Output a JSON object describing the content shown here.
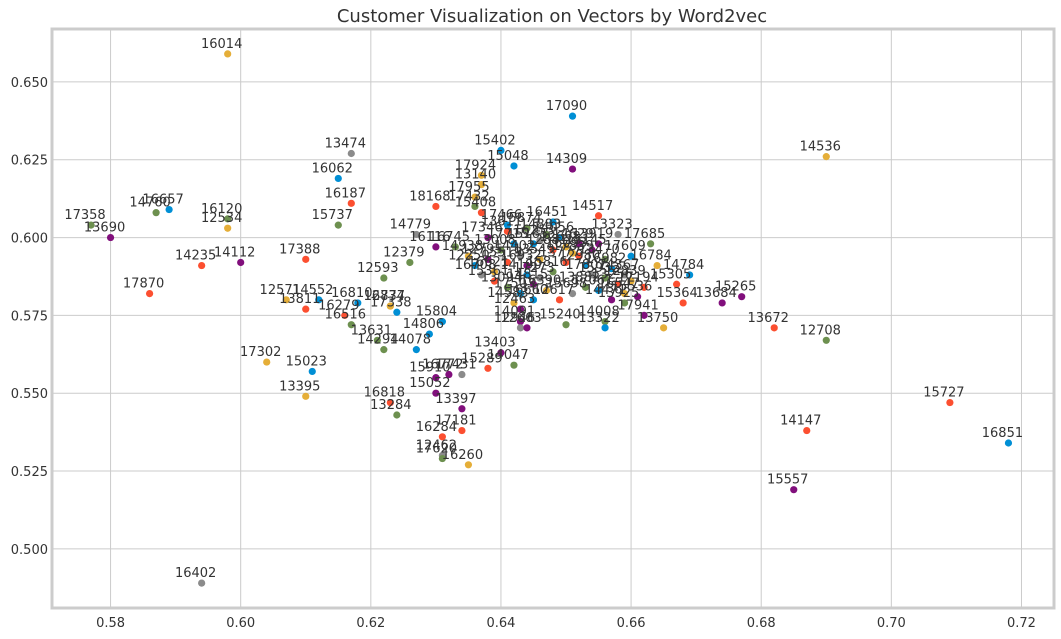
{
  "chart_data": {
    "type": "scatter",
    "title": "Customer Visualization on Vectors by Word2vec",
    "xlabel": "",
    "ylabel": "",
    "xlim": [
      0.571,
      0.725
    ],
    "ylim": [
      0.481,
      0.667
    ],
    "xticks": [
      0.58,
      0.6,
      0.62,
      0.64,
      0.66,
      0.68,
      0.7,
      0.72
    ],
    "yticks": [
      0.5,
      0.525,
      0.55,
      0.575,
      0.6,
      0.625,
      0.65
    ],
    "grid": true,
    "palette": [
      "#008fd5",
      "#fc4f30",
      "#e5ae38",
      "#6d904f",
      "#8b8b8b",
      "#810f7c"
    ],
    "points": [
      {
        "label": "16014",
        "x": 0.598,
        "y": 0.659,
        "c": 2
      },
      {
        "label": "17090",
        "x": 0.651,
        "y": 0.639,
        "c": 0
      },
      {
        "label": "14536",
        "x": 0.69,
        "y": 0.626,
        "c": 2
      },
      {
        "label": "13474",
        "x": 0.617,
        "y": 0.627,
        "c": 4
      },
      {
        "label": "15402",
        "x": 0.64,
        "y": 0.628,
        "c": 0
      },
      {
        "label": "15048",
        "x": 0.642,
        "y": 0.623,
        "c": 0
      },
      {
        "label": "14309",
        "x": 0.651,
        "y": 0.622,
        "c": 5
      },
      {
        "label": "16062",
        "x": 0.615,
        "y": 0.619,
        "c": 0
      },
      {
        "label": "17924",
        "x": 0.637,
        "y": 0.62,
        "c": 2
      },
      {
        "label": "13140",
        "x": 0.637,
        "y": 0.617,
        "c": 2
      },
      {
        "label": "16187",
        "x": 0.617,
        "y": 0.611,
        "c": 1
      },
      {
        "label": "18168",
        "x": 0.63,
        "y": 0.61,
        "c": 1
      },
      {
        "label": "17955",
        "x": 0.636,
        "y": 0.613,
        "c": 2
      },
      {
        "label": "17432",
        "x": 0.636,
        "y": 0.61,
        "c": 3
      },
      {
        "label": "15408",
        "x": 0.637,
        "y": 0.608,
        "c": 1
      },
      {
        "label": "14517",
        "x": 0.655,
        "y": 0.607,
        "c": 1
      },
      {
        "label": "16657",
        "x": 0.589,
        "y": 0.609,
        "c": 0
      },
      {
        "label": "14760",
        "x": 0.587,
        "y": 0.608,
        "c": 3
      },
      {
        "label": "16120",
        "x": 0.598,
        "y": 0.606,
        "c": 3
      },
      {
        "label": "12534",
        "x": 0.598,
        "y": 0.603,
        "c": 2
      },
      {
        "label": "15737",
        "x": 0.615,
        "y": 0.604,
        "c": 3
      },
      {
        "label": "17358",
        "x": 0.577,
        "y": 0.604,
        "c": 3
      },
      {
        "label": "13690",
        "x": 0.58,
        "y": 0.6,
        "c": 5
      },
      {
        "label": "14779",
        "x": 0.627,
        "y": 0.601,
        "c": 4
      },
      {
        "label": "16116",
        "x": 0.63,
        "y": 0.597,
        "c": 5
      },
      {
        "label": "16745",
        "x": 0.633,
        "y": 0.597,
        "c": 3
      },
      {
        "label": "17466",
        "x": 0.641,
        "y": 0.604,
        "c": 0
      },
      {
        "label": "16451",
        "x": 0.648,
        "y": 0.605,
        "c": 0
      },
      {
        "label": "13323",
        "x": 0.658,
        "y": 0.601,
        "c": 4
      },
      {
        "label": "17685",
        "x": 0.663,
        "y": 0.598,
        "c": 3
      },
      {
        "label": "13919",
        "x": 0.655,
        "y": 0.598,
        "c": 5
      },
      {
        "label": "17388",
        "x": 0.61,
        "y": 0.593,
        "c": 1
      },
      {
        "label": "12379",
        "x": 0.626,
        "y": 0.592,
        "c": 3
      },
      {
        "label": "14112",
        "x": 0.6,
        "y": 0.592,
        "c": 5
      },
      {
        "label": "14235",
        "x": 0.594,
        "y": 0.591,
        "c": 1
      },
      {
        "label": "12593",
        "x": 0.622,
        "y": 0.587,
        "c": 3
      },
      {
        "label": "17609",
        "x": 0.66,
        "y": 0.594,
        "c": 0
      },
      {
        "label": "16784",
        "x": 0.664,
        "y": 0.591,
        "c": 2
      },
      {
        "label": "14784",
        "x": 0.669,
        "y": 0.588,
        "c": 0
      },
      {
        "label": "15305",
        "x": 0.667,
        "y": 0.585,
        "c": 1
      },
      {
        "label": "15265",
        "x": 0.677,
        "y": 0.581,
        "c": 5
      },
      {
        "label": "13684",
        "x": 0.674,
        "y": 0.579,
        "c": 5
      },
      {
        "label": "15364",
        "x": 0.668,
        "y": 0.579,
        "c": 1
      },
      {
        "label": "17870",
        "x": 0.586,
        "y": 0.582,
        "c": 1
      },
      {
        "label": "12571",
        "x": 0.607,
        "y": 0.58,
        "c": 2
      },
      {
        "label": "14552",
        "x": 0.612,
        "y": 0.58,
        "c": 0
      },
      {
        "label": "16810",
        "x": 0.618,
        "y": 0.579,
        "c": 0
      },
      {
        "label": "13811",
        "x": 0.61,
        "y": 0.577,
        "c": 1
      },
      {
        "label": "16279",
        "x": 0.616,
        "y": 0.575,
        "c": 1
      },
      {
        "label": "16777",
        "x": 0.623,
        "y": 0.578,
        "c": 2
      },
      {
        "label": "12834",
        "x": 0.623,
        "y": 0.578,
        "c": 2
      },
      {
        "label": "17338",
        "x": 0.624,
        "y": 0.576,
        "c": 0
      },
      {
        "label": "16516",
        "x": 0.617,
        "y": 0.572,
        "c": 3
      },
      {
        "label": "15804",
        "x": 0.631,
        "y": 0.573,
        "c": 0
      },
      {
        "label": "14806",
        "x": 0.629,
        "y": 0.569,
        "c": 0
      },
      {
        "label": "13631",
        "x": 0.621,
        "y": 0.567,
        "c": 3
      },
      {
        "label": "14294",
        "x": 0.622,
        "y": 0.564,
        "c": 3
      },
      {
        "label": "14078",
        "x": 0.627,
        "y": 0.564,
        "c": 0
      },
      {
        "label": "12463",
        "x": 0.643,
        "y": 0.577,
        "c": 5
      },
      {
        "label": "14091",
        "x": 0.643,
        "y": 0.573,
        "c": 5
      },
      {
        "label": "12946",
        "x": 0.643,
        "y": 0.571,
        "c": 4
      },
      {
        "label": "12663",
        "x": 0.644,
        "y": 0.571,
        "c": 5
      },
      {
        "label": "15240",
        "x": 0.65,
        "y": 0.572,
        "c": 3
      },
      {
        "label": "14008",
        "x": 0.656,
        "y": 0.573,
        "c": 3
      },
      {
        "label": "13322",
        "x": 0.656,
        "y": 0.571,
        "c": 0
      },
      {
        "label": "13750",
        "x": 0.665,
        "y": 0.571,
        "c": 2
      },
      {
        "label": "17941",
        "x": 0.662,
        "y": 0.575,
        "c": 5
      },
      {
        "label": "13672",
        "x": 0.682,
        "y": 0.571,
        "c": 1
      },
      {
        "label": "12708",
        "x": 0.69,
        "y": 0.567,
        "c": 3
      },
      {
        "label": "17302",
        "x": 0.604,
        "y": 0.56,
        "c": 2
      },
      {
        "label": "15023",
        "x": 0.611,
        "y": 0.557,
        "c": 0
      },
      {
        "label": "13403",
        "x": 0.64,
        "y": 0.563,
        "c": 5
      },
      {
        "label": "14047",
        "x": 0.642,
        "y": 0.559,
        "c": 3
      },
      {
        "label": "15289",
        "x": 0.638,
        "y": 0.558,
        "c": 1
      },
      {
        "label": "16772",
        "x": 0.632,
        "y": 0.556,
        "c": 5
      },
      {
        "label": "17431",
        "x": 0.634,
        "y": 0.556,
        "c": 4
      },
      {
        "label": "15910",
        "x": 0.63,
        "y": 0.555,
        "c": 5
      },
      {
        "label": "15052",
        "x": 0.63,
        "y": 0.55,
        "c": 5
      },
      {
        "label": "13395",
        "x": 0.61,
        "y": 0.549,
        "c": 2
      },
      {
        "label": "16818",
        "x": 0.623,
        "y": 0.547,
        "c": 1
      },
      {
        "label": "13284",
        "x": 0.624,
        "y": 0.543,
        "c": 3
      },
      {
        "label": "13397",
        "x": 0.634,
        "y": 0.545,
        "c": 5
      },
      {
        "label": "17181",
        "x": 0.634,
        "y": 0.538,
        "c": 1
      },
      {
        "label": "16284",
        "x": 0.631,
        "y": 0.536,
        "c": 1
      },
      {
        "label": "12462",
        "x": 0.631,
        "y": 0.53,
        "c": 4
      },
      {
        "label": "17620",
        "x": 0.631,
        "y": 0.529,
        "c": 3
      },
      {
        "label": "16260",
        "x": 0.635,
        "y": 0.527,
        "c": 2
      },
      {
        "label": "15727",
        "x": 0.709,
        "y": 0.547,
        "c": 1
      },
      {
        "label": "14147",
        "x": 0.687,
        "y": 0.538,
        "c": 1
      },
      {
        "label": "16851",
        "x": 0.718,
        "y": 0.534,
        "c": 0
      },
      {
        "label": "15557",
        "x": 0.685,
        "y": 0.519,
        "c": 5
      },
      {
        "label": "16402",
        "x": 0.594,
        "y": 0.489,
        "c": 4
      },
      {
        "label": "15165",
        "x": 0.645,
        "y": 0.598,
        "c": 0
      },
      {
        "label": "14883",
        "x": 0.647,
        "y": 0.601,
        "c": 3
      },
      {
        "label": "12881",
        "x": 0.648,
        "y": 0.596,
        "c": 1
      },
      {
        "label": "13549",
        "x": 0.646,
        "y": 0.593,
        "c": 2
      },
      {
        "label": "16932",
        "x": 0.644,
        "y": 0.591,
        "c": 5
      },
      {
        "label": "14402",
        "x": 0.643,
        "y": 0.594,
        "c": 4
      },
      {
        "label": "17715",
        "x": 0.642,
        "y": 0.598,
        "c": 0
      },
      {
        "label": "13008",
        "x": 0.64,
        "y": 0.596,
        "c": 3
      },
      {
        "label": "15519",
        "x": 0.641,
        "y": 0.592,
        "c": 1
      },
      {
        "label": "16621",
        "x": 0.639,
        "y": 0.589,
        "c": 2
      },
      {
        "label": "12795",
        "x": 0.638,
        "y": 0.593,
        "c": 5
      },
      {
        "label": "14190",
        "x": 0.644,
        "y": 0.588,
        "c": 0
      },
      {
        "label": "17273",
        "x": 0.646,
        "y": 0.587,
        "c": 4
      },
      {
        "label": "15816",
        "x": 0.648,
        "y": 0.589,
        "c": 3
      },
      {
        "label": "13777",
        "x": 0.65,
        "y": 0.592,
        "c": 1
      },
      {
        "label": "16093",
        "x": 0.651,
        "y": 0.595,
        "c": 2
      },
      {
        "label": "14629",
        "x": 0.652,
        "y": 0.598,
        "c": 5
      },
      {
        "label": "12980",
        "x": 0.653,
        "y": 0.591,
        "c": 0
      },
      {
        "label": "17807",
        "x": 0.654,
        "y": 0.588,
        "c": 4
      },
      {
        "label": "15932",
        "x": 0.656,
        "y": 0.587,
        "c": 3
      },
      {
        "label": "13256",
        "x": 0.658,
        "y": 0.585,
        "c": 1
      },
      {
        "label": "16547",
        "x": 0.659,
        "y": 0.582,
        "c": 2
      },
      {
        "label": "14471",
        "x": 0.657,
        "y": 0.58,
        "c": 5
      },
      {
        "label": "17061",
        "x": 0.655,
        "y": 0.583,
        "c": 0
      },
      {
        "label": "13882",
        "x": 0.653,
        "y": 0.584,
        "c": 3
      },
      {
        "label": "15698",
        "x": 0.651,
        "y": 0.582,
        "c": 4
      },
      {
        "label": "12617",
        "x": 0.649,
        "y": 0.58,
        "c": 1
      },
      {
        "label": "16390",
        "x": 0.647,
        "y": 0.583,
        "c": 2
      },
      {
        "label": "14815",
        "x": 0.645,
        "y": 0.585,
        "c": 5
      },
      {
        "label": "17503",
        "x": 0.643,
        "y": 0.582,
        "c": 0
      },
      {
        "label": "13094",
        "x": 0.641,
        "y": 0.584,
        "c": 3
      },
      {
        "label": "15361",
        "x": 0.639,
        "y": 0.586,
        "c": 1
      },
      {
        "label": "16708",
        "x": 0.637,
        "y": 0.588,
        "c": 4
      },
      {
        "label": "12250",
        "x": 0.636,
        "y": 0.591,
        "c": 0
      },
      {
        "label": "14938",
        "x": 0.635,
        "y": 0.594,
        "c": 2
      },
      {
        "label": "17346",
        "x": 0.638,
        "y": 0.6,
        "c": 5
      },
      {
        "label": "13611",
        "x": 0.641,
        "y": 0.602,
        "c": 1
      },
      {
        "label": "15874",
        "x": 0.644,
        "y": 0.603,
        "c": 3
      },
      {
        "label": "16253",
        "x": 0.646,
        "y": 0.599,
        "c": 4
      },
      {
        "label": "14056",
        "x": 0.649,
        "y": 0.6,
        "c": 0
      },
      {
        "label": "12698",
        "x": 0.65,
        "y": 0.597,
        "c": 2
      },
      {
        "label": "17839",
        "x": 0.652,
        "y": 0.594,
        "c": 1
      },
      {
        "label": "15145",
        "x": 0.654,
        "y": 0.596,
        "c": 5
      },
      {
        "label": "13470",
        "x": 0.656,
        "y": 0.593,
        "c": 3
      },
      {
        "label": "16982",
        "x": 0.657,
        "y": 0.59,
        "c": 0
      },
      {
        "label": "14367",
        "x": 0.659,
        "y": 0.588,
        "c": 4
      },
      {
        "label": "12839",
        "x": 0.66,
        "y": 0.586,
        "c": 2
      },
      {
        "label": "17194",
        "x": 0.662,
        "y": 0.584,
        "c": 1
      },
      {
        "label": "15536",
        "x": 0.661,
        "y": 0.581,
        "c": 5
      },
      {
        "label": "13925",
        "x": 0.659,
        "y": 0.579,
        "c": 3
      },
      {
        "label": "16660",
        "x": 0.645,
        "y": 0.58,
        "c": 0
      },
      {
        "label": "14583",
        "x": 0.642,
        "y": 0.579,
        "c": 2
      }
    ]
  }
}
